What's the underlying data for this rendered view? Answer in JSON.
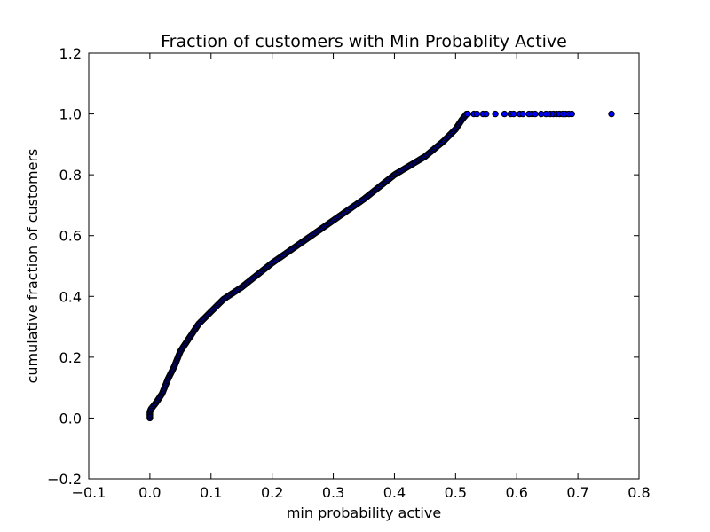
{
  "chart_data": {
    "type": "scatter",
    "title": "Fraction of customers with Min Probablity Active",
    "xlabel": "min probability active",
    "ylabel": "cumulative fraction of customers",
    "xlim": [
      -0.1,
      0.8
    ],
    "ylim": [
      -0.2,
      1.2
    ],
    "xticks": [
      -0.1,
      0.0,
      0.1,
      0.2,
      0.3,
      0.4,
      0.5,
      0.6,
      0.7,
      0.8
    ],
    "yticks": [
      -0.2,
      0.0,
      0.2,
      0.4,
      0.6,
      0.8,
      1.0,
      1.2
    ],
    "xtick_labels": [
      "−0.1",
      "0.0",
      "0.1",
      "0.2",
      "0.3",
      "0.4",
      "0.5",
      "0.6",
      "0.7",
      "0.8"
    ],
    "ytick_labels": [
      "−0.2",
      "0.0",
      "0.2",
      "0.4",
      "0.6",
      "0.8",
      "1.0",
      "1.2"
    ],
    "grid": false,
    "marker_color": "#0000ff",
    "marker_edge": "#000000",
    "curve_points": [
      [
        0.0,
        0.0
      ],
      [
        0.0,
        0.02
      ],
      [
        0.002,
        0.03
      ],
      [
        0.01,
        0.05
      ],
      [
        0.02,
        0.08
      ],
      [
        0.03,
        0.13
      ],
      [
        0.04,
        0.17
      ],
      [
        0.05,
        0.22
      ],
      [
        0.06,
        0.25
      ],
      [
        0.07,
        0.28
      ],
      [
        0.08,
        0.31
      ],
      [
        0.1,
        0.35
      ],
      [
        0.12,
        0.39
      ],
      [
        0.15,
        0.43
      ],
      [
        0.2,
        0.51
      ],
      [
        0.25,
        0.58
      ],
      [
        0.3,
        0.65
      ],
      [
        0.35,
        0.72
      ],
      [
        0.4,
        0.8
      ],
      [
        0.45,
        0.86
      ],
      [
        0.48,
        0.91
      ],
      [
        0.5,
        0.95
      ],
      [
        0.51,
        0.98
      ],
      [
        0.518,
        1.0
      ]
    ],
    "tail_points_x": [
      0.52,
      0.53,
      0.535,
      0.545,
      0.55,
      0.565,
      0.58,
      0.59,
      0.595,
      0.605,
      0.61,
      0.62,
      0.625,
      0.63,
      0.64,
      0.648,
      0.655,
      0.66,
      0.665,
      0.67,
      0.675,
      0.68,
      0.685,
      0.69,
      0.755
    ],
    "tail_y": 1.0
  }
}
